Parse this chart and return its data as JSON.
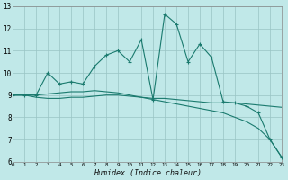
{
  "xlabel": "Humidex (Indice chaleur)",
  "background_color": "#c0e8e8",
  "grid_color": "#99c4c4",
  "line_color": "#1a7a6e",
  "xlim": [
    0,
    23
  ],
  "ylim": [
    6,
    13
  ],
  "xticks": [
    0,
    1,
    2,
    3,
    4,
    5,
    6,
    7,
    8,
    9,
    10,
    11,
    12,
    13,
    14,
    15,
    16,
    17,
    18,
    19,
    20,
    21,
    22,
    23
  ],
  "yticks": [
    6,
    7,
    8,
    9,
    10,
    11,
    12,
    13
  ],
  "main_x": [
    0,
    1,
    2,
    3,
    4,
    5,
    6,
    7,
    8,
    9,
    10,
    11,
    12,
    13,
    14,
    15,
    16,
    17,
    18,
    19,
    20,
    21,
    22,
    23
  ],
  "main_y": [
    9.0,
    9.0,
    9.0,
    10.0,
    9.5,
    9.6,
    9.5,
    10.3,
    10.8,
    11.0,
    10.5,
    11.5,
    8.8,
    12.65,
    12.2,
    10.5,
    11.3,
    10.7,
    8.7,
    8.65,
    8.5,
    8.2,
    7.0,
    6.2
  ],
  "smooth1_x": [
    0,
    1,
    2,
    3,
    4,
    5,
    6,
    7,
    8,
    9,
    10,
    11,
    12,
    13,
    14,
    15,
    16,
    17,
    18,
    19,
    20,
    21,
    22,
    23
  ],
  "smooth1_y": [
    9.0,
    9.0,
    8.9,
    8.85,
    8.85,
    8.9,
    8.9,
    8.95,
    9.0,
    9.0,
    8.95,
    8.9,
    8.85,
    8.85,
    8.8,
    8.75,
    8.7,
    8.65,
    8.65,
    8.65,
    8.6,
    8.55,
    8.5,
    8.45
  ],
  "smooth2_x": [
    0,
    1,
    2,
    3,
    4,
    5,
    6,
    7,
    8,
    9,
    10,
    11,
    12,
    13,
    14,
    15,
    16,
    17,
    18,
    19,
    20,
    21,
    22,
    23
  ],
  "smooth2_y": [
    9.0,
    9.0,
    9.0,
    9.05,
    9.1,
    9.15,
    9.15,
    9.2,
    9.15,
    9.1,
    9.0,
    8.9,
    8.8,
    8.7,
    8.6,
    8.5,
    8.4,
    8.3,
    8.2,
    8.0,
    7.8,
    7.5,
    7.0,
    6.2
  ]
}
